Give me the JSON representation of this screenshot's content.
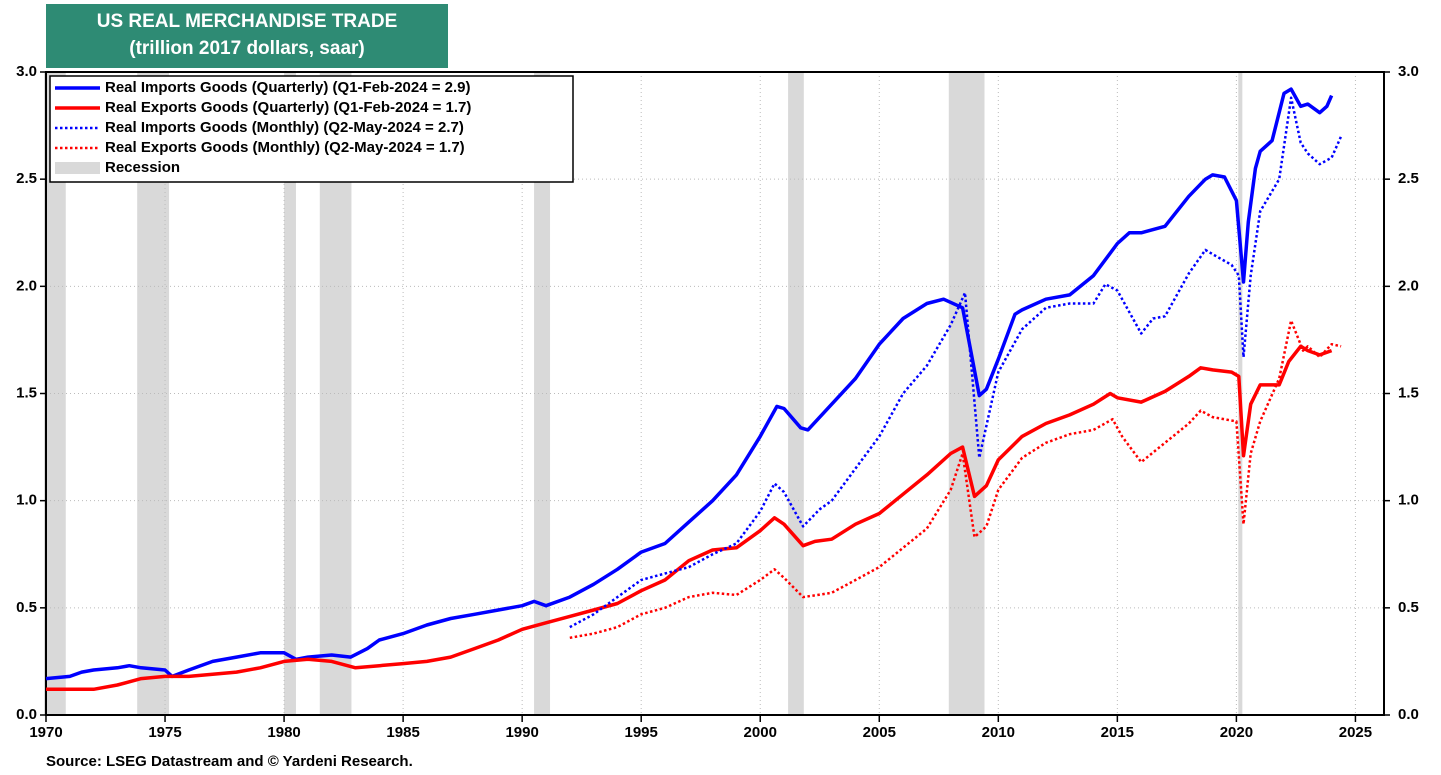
{
  "chart_data": {
    "type": "line",
    "title": "US REAL MERCHANDISE TRADE",
    "subtitle": "(trillion 2017 dollars, saar)",
    "source": "Source: LSEG Datastream and © Yardeni Research.",
    "xlim": [
      1970,
      2026.2
    ],
    "xticks": [
      1970,
      1975,
      1980,
      1985,
      1990,
      1995,
      2000,
      2005,
      2010,
      2015,
      2020,
      2025
    ],
    "ylim": [
      0,
      3
    ],
    "yticks": [
      {
        "value": 0,
        "label": "0.0"
      },
      0.5,
      {
        "value": 1,
        "label": "1.0"
      },
      1.5,
      {
        "value": 2,
        "label": "2.0"
      },
      2.5,
      {
        "value": 3,
        "label": "3.0"
      }
    ],
    "y2lim": [
      0,
      3
    ],
    "y2ticks": [
      {
        "value": 0,
        "label": "0.0"
      },
      0.5,
      {
        "value": 1,
        "label": "1.0"
      },
      1.5,
      {
        "value": 2,
        "label": "2.0"
      },
      2.5,
      {
        "value": 3,
        "label": "3.0"
      }
    ],
    "grid": true,
    "legend": "upper left",
    "recession_label": "Recession",
    "recession_color": "#d9d9d9",
    "recessions": [
      [
        1969.92,
        1970.83
      ],
      [
        1973.83,
        1975.17
      ],
      [
        1980.0,
        1980.5
      ],
      [
        1981.5,
        1982.83
      ],
      [
        1990.5,
        1991.17
      ],
      [
        2001.17,
        2001.83
      ],
      [
        2007.92,
        2009.42
      ],
      [
        2020.08,
        2020.25
      ]
    ],
    "series": [
      {
        "name": "Real Imports Goods (Quarterly) (Q1-Feb-2024 = 2.9)",
        "color": "#0000ff",
        "dash": "solid",
        "x": [
          1970,
          1971,
          1971.5,
          1972,
          1973,
          1973.5,
          1974,
          1975,
          1975.3,
          1976,
          1977,
          1978,
          1979,
          1980,
          1980.5,
          1981,
          1982,
          1982.8,
          1983.5,
          1984,
          1985,
          1986,
          1987,
          1988,
          1989,
          1990,
          1990.5,
          1991,
          1992,
          1993,
          1994,
          1995,
          1996,
          1997,
          1998,
          1999,
          2000,
          2000.7,
          2001,
          2001.7,
          2002,
          2003,
          2004,
          2005,
          2006,
          2007,
          2007.7,
          2008.5,
          2009.2,
          2009.5,
          2010,
          2010.7,
          2011,
          2012,
          2013,
          2014,
          2015,
          2015.5,
          2016,
          2017,
          2018,
          2018.7,
          2019,
          2019.5,
          2020,
          2020.3,
          2020.5,
          2020.8,
          2021,
          2021.5,
          2022,
          2022.3,
          2022.7,
          2023,
          2023.5,
          2023.8,
          2024
        ],
        "values": [
          0.17,
          0.18,
          0.2,
          0.21,
          0.22,
          0.23,
          0.22,
          0.21,
          0.18,
          0.21,
          0.25,
          0.27,
          0.29,
          0.29,
          0.26,
          0.27,
          0.28,
          0.27,
          0.31,
          0.35,
          0.38,
          0.42,
          0.45,
          0.47,
          0.49,
          0.51,
          0.53,
          0.51,
          0.55,
          0.61,
          0.68,
          0.76,
          0.8,
          0.9,
          1.0,
          1.12,
          1.3,
          1.44,
          1.43,
          1.34,
          1.33,
          1.45,
          1.57,
          1.73,
          1.85,
          1.92,
          1.94,
          1.9,
          1.49,
          1.52,
          1.66,
          1.87,
          1.89,
          1.94,
          1.96,
          2.05,
          2.2,
          2.25,
          2.25,
          2.28,
          2.42,
          2.5,
          2.52,
          2.51,
          2.4,
          2.02,
          2.3,
          2.55,
          2.63,
          2.68,
          2.9,
          2.92,
          2.84,
          2.85,
          2.81,
          2.84,
          2.89
        ]
      },
      {
        "name": "Real Exports Goods (Quarterly) (Q1-Feb-2024 = 1.7)",
        "color": "#ff0000",
        "dash": "solid",
        "x": [
          1970,
          1972,
          1973,
          1974,
          1975,
          1976,
          1977,
          1978,
          1979,
          1980,
          1981,
          1982,
          1983,
          1984,
          1985,
          1986,
          1987,
          1988,
          1989,
          1990,
          1991,
          1992,
          1993,
          1994,
          1995,
          1996,
          1997,
          1998,
          1999,
          2000,
          2000.6,
          2001,
          2001.8,
          2002.3,
          2003,
          2004,
          2005,
          2006,
          2007,
          2008,
          2008.5,
          2009,
          2009.5,
          2010,
          2011,
          2012,
          2013,
          2014,
          2014.7,
          2015,
          2016,
          2017,
          2018,
          2018.5,
          2019,
          2019.8,
          2020.1,
          2020.3,
          2020.6,
          2021,
          2021.8,
          2022.2,
          2022.7,
          2023,
          2023.5,
          2024
        ],
        "values": [
          0.12,
          0.12,
          0.14,
          0.17,
          0.18,
          0.18,
          0.19,
          0.2,
          0.22,
          0.25,
          0.26,
          0.25,
          0.22,
          0.23,
          0.24,
          0.25,
          0.27,
          0.31,
          0.35,
          0.4,
          0.43,
          0.46,
          0.49,
          0.52,
          0.58,
          0.63,
          0.72,
          0.77,
          0.78,
          0.86,
          0.92,
          0.89,
          0.79,
          0.81,
          0.82,
          0.89,
          0.94,
          1.03,
          1.12,
          1.22,
          1.25,
          1.02,
          1.07,
          1.19,
          1.3,
          1.36,
          1.4,
          1.45,
          1.5,
          1.48,
          1.46,
          1.51,
          1.58,
          1.62,
          1.61,
          1.6,
          1.58,
          1.21,
          1.45,
          1.54,
          1.54,
          1.65,
          1.72,
          1.7,
          1.68,
          1.7
        ]
      },
      {
        "name": "Real Imports Goods (Monthly) (Q2-May-2024 = 2.7)",
        "color": "#0000ff",
        "dash": "dotted",
        "x": [
          1992,
          1993,
          1994,
          1995,
          1996,
          1997,
          1998,
          1999,
          2000,
          2000.6,
          2001,
          2001.8,
          2002.5,
          2003,
          2004,
          2005,
          2006,
          2007,
          2008,
          2008.6,
          2009.2,
          2009.6,
          2010,
          2011,
          2012,
          2013,
          2014,
          2014.5,
          2015,
          2016,
          2016.5,
          2017,
          2018,
          2018.7,
          2019,
          2019.8,
          2020.1,
          2020.3,
          2020.6,
          2021,
          2021.8,
          2022.3,
          2022.7,
          2023,
          2023.5,
          2024,
          2024.4
        ],
        "values": [
          0.41,
          0.47,
          0.55,
          0.63,
          0.66,
          0.69,
          0.75,
          0.8,
          0.95,
          1.08,
          1.04,
          0.88,
          0.96,
          1.0,
          1.15,
          1.3,
          1.5,
          1.63,
          1.82,
          1.97,
          1.2,
          1.4,
          1.6,
          1.8,
          1.9,
          1.92,
          1.92,
          2.01,
          1.98,
          1.78,
          1.85,
          1.86,
          2.06,
          2.17,
          2.15,
          2.1,
          2.05,
          1.67,
          2.05,
          2.35,
          2.5,
          2.88,
          2.67,
          2.62,
          2.57,
          2.6,
          2.7
        ]
      },
      {
        "name": "Real Exports Goods (Monthly) (Q2-May-2024 = 1.7)",
        "color": "#ff0000",
        "dash": "dotted",
        "x": [
          1992,
          1993,
          1994,
          1995,
          1996,
          1997,
          1998,
          1999,
          2000,
          2000.6,
          2001,
          2001.8,
          2003,
          2004,
          2005,
          2006,
          2007,
          2008,
          2008.5,
          2009,
          2009.5,
          2010,
          2011,
          2012,
          2013,
          2014,
          2014.8,
          2015.2,
          2016,
          2017,
          2018,
          2018.5,
          2019,
          2020,
          2020.3,
          2020.6,
          2021,
          2021.8,
          2022.3,
          2022.8,
          2023,
          2023.5,
          2024,
          2024.4
        ],
        "values": [
          0.36,
          0.38,
          0.41,
          0.47,
          0.5,
          0.55,
          0.57,
          0.56,
          0.63,
          0.68,
          0.64,
          0.55,
          0.57,
          0.63,
          0.69,
          0.78,
          0.87,
          1.05,
          1.22,
          0.83,
          0.88,
          1.05,
          1.2,
          1.27,
          1.31,
          1.33,
          1.38,
          1.3,
          1.18,
          1.27,
          1.36,
          1.42,
          1.39,
          1.37,
          0.89,
          1.22,
          1.37,
          1.57,
          1.84,
          1.7,
          1.72,
          1.67,
          1.73,
          1.72
        ]
      }
    ]
  }
}
